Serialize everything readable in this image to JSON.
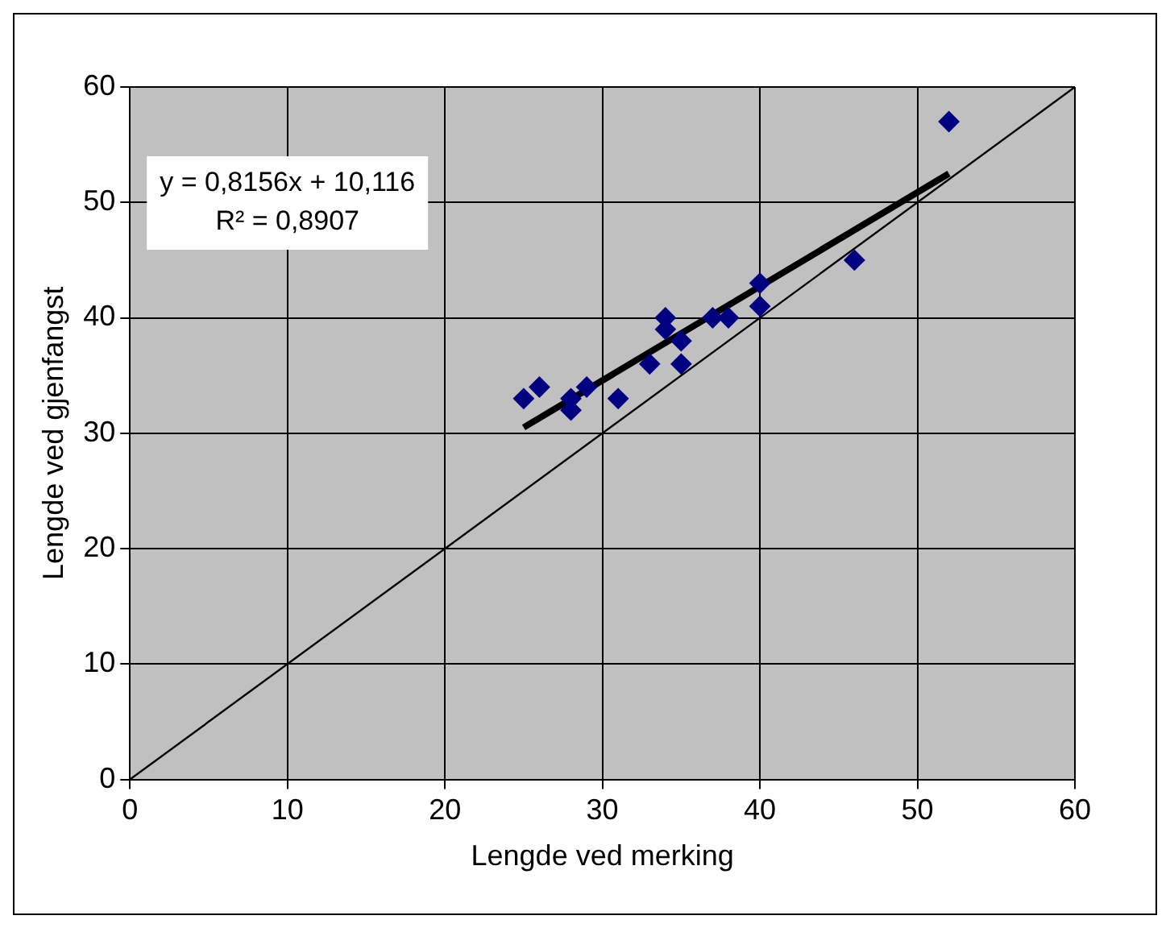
{
  "chart_data": {
    "type": "scatter",
    "xlabel": "Lengde ved merking",
    "ylabel": "Lengde ved gjenfangst",
    "annotations": [
      "y = 0,8156x + 10,116\nR² = 0,8907"
    ],
    "series": [
      {
        "type": "scatter",
        "color": "#000080",
        "marker": "diamond",
        "x": [
          25,
          26,
          28,
          28,
          29,
          31,
          33,
          34,
          34,
          35,
          35,
          37,
          38,
          40,
          40,
          46,
          52
        ],
        "values": [
          33,
          34,
          33,
          32,
          34,
          33,
          36,
          40,
          39,
          38,
          36,
          40,
          40,
          43,
          41,
          45,
          57
        ]
      },
      {
        "type": "line",
        "color": "#000000",
        "marker": "none",
        "x": [
          25,
          52
        ],
        "values": [
          30.5,
          52.5
        ]
      },
      {
        "type": "line",
        "color": "#000000",
        "marker": "none",
        "x": [
          0,
          60
        ],
        "values": [
          0,
          60
        ]
      }
    ],
    "xlim": [
      0,
      60
    ],
    "xticks": [
      0,
      10,
      20,
      30,
      40,
      50,
      60
    ],
    "ylim": [
      0,
      60
    ],
    "yticks": [
      0,
      10,
      20,
      30,
      40,
      50,
      60
    ],
    "grid": true,
    "legend": false
  }
}
